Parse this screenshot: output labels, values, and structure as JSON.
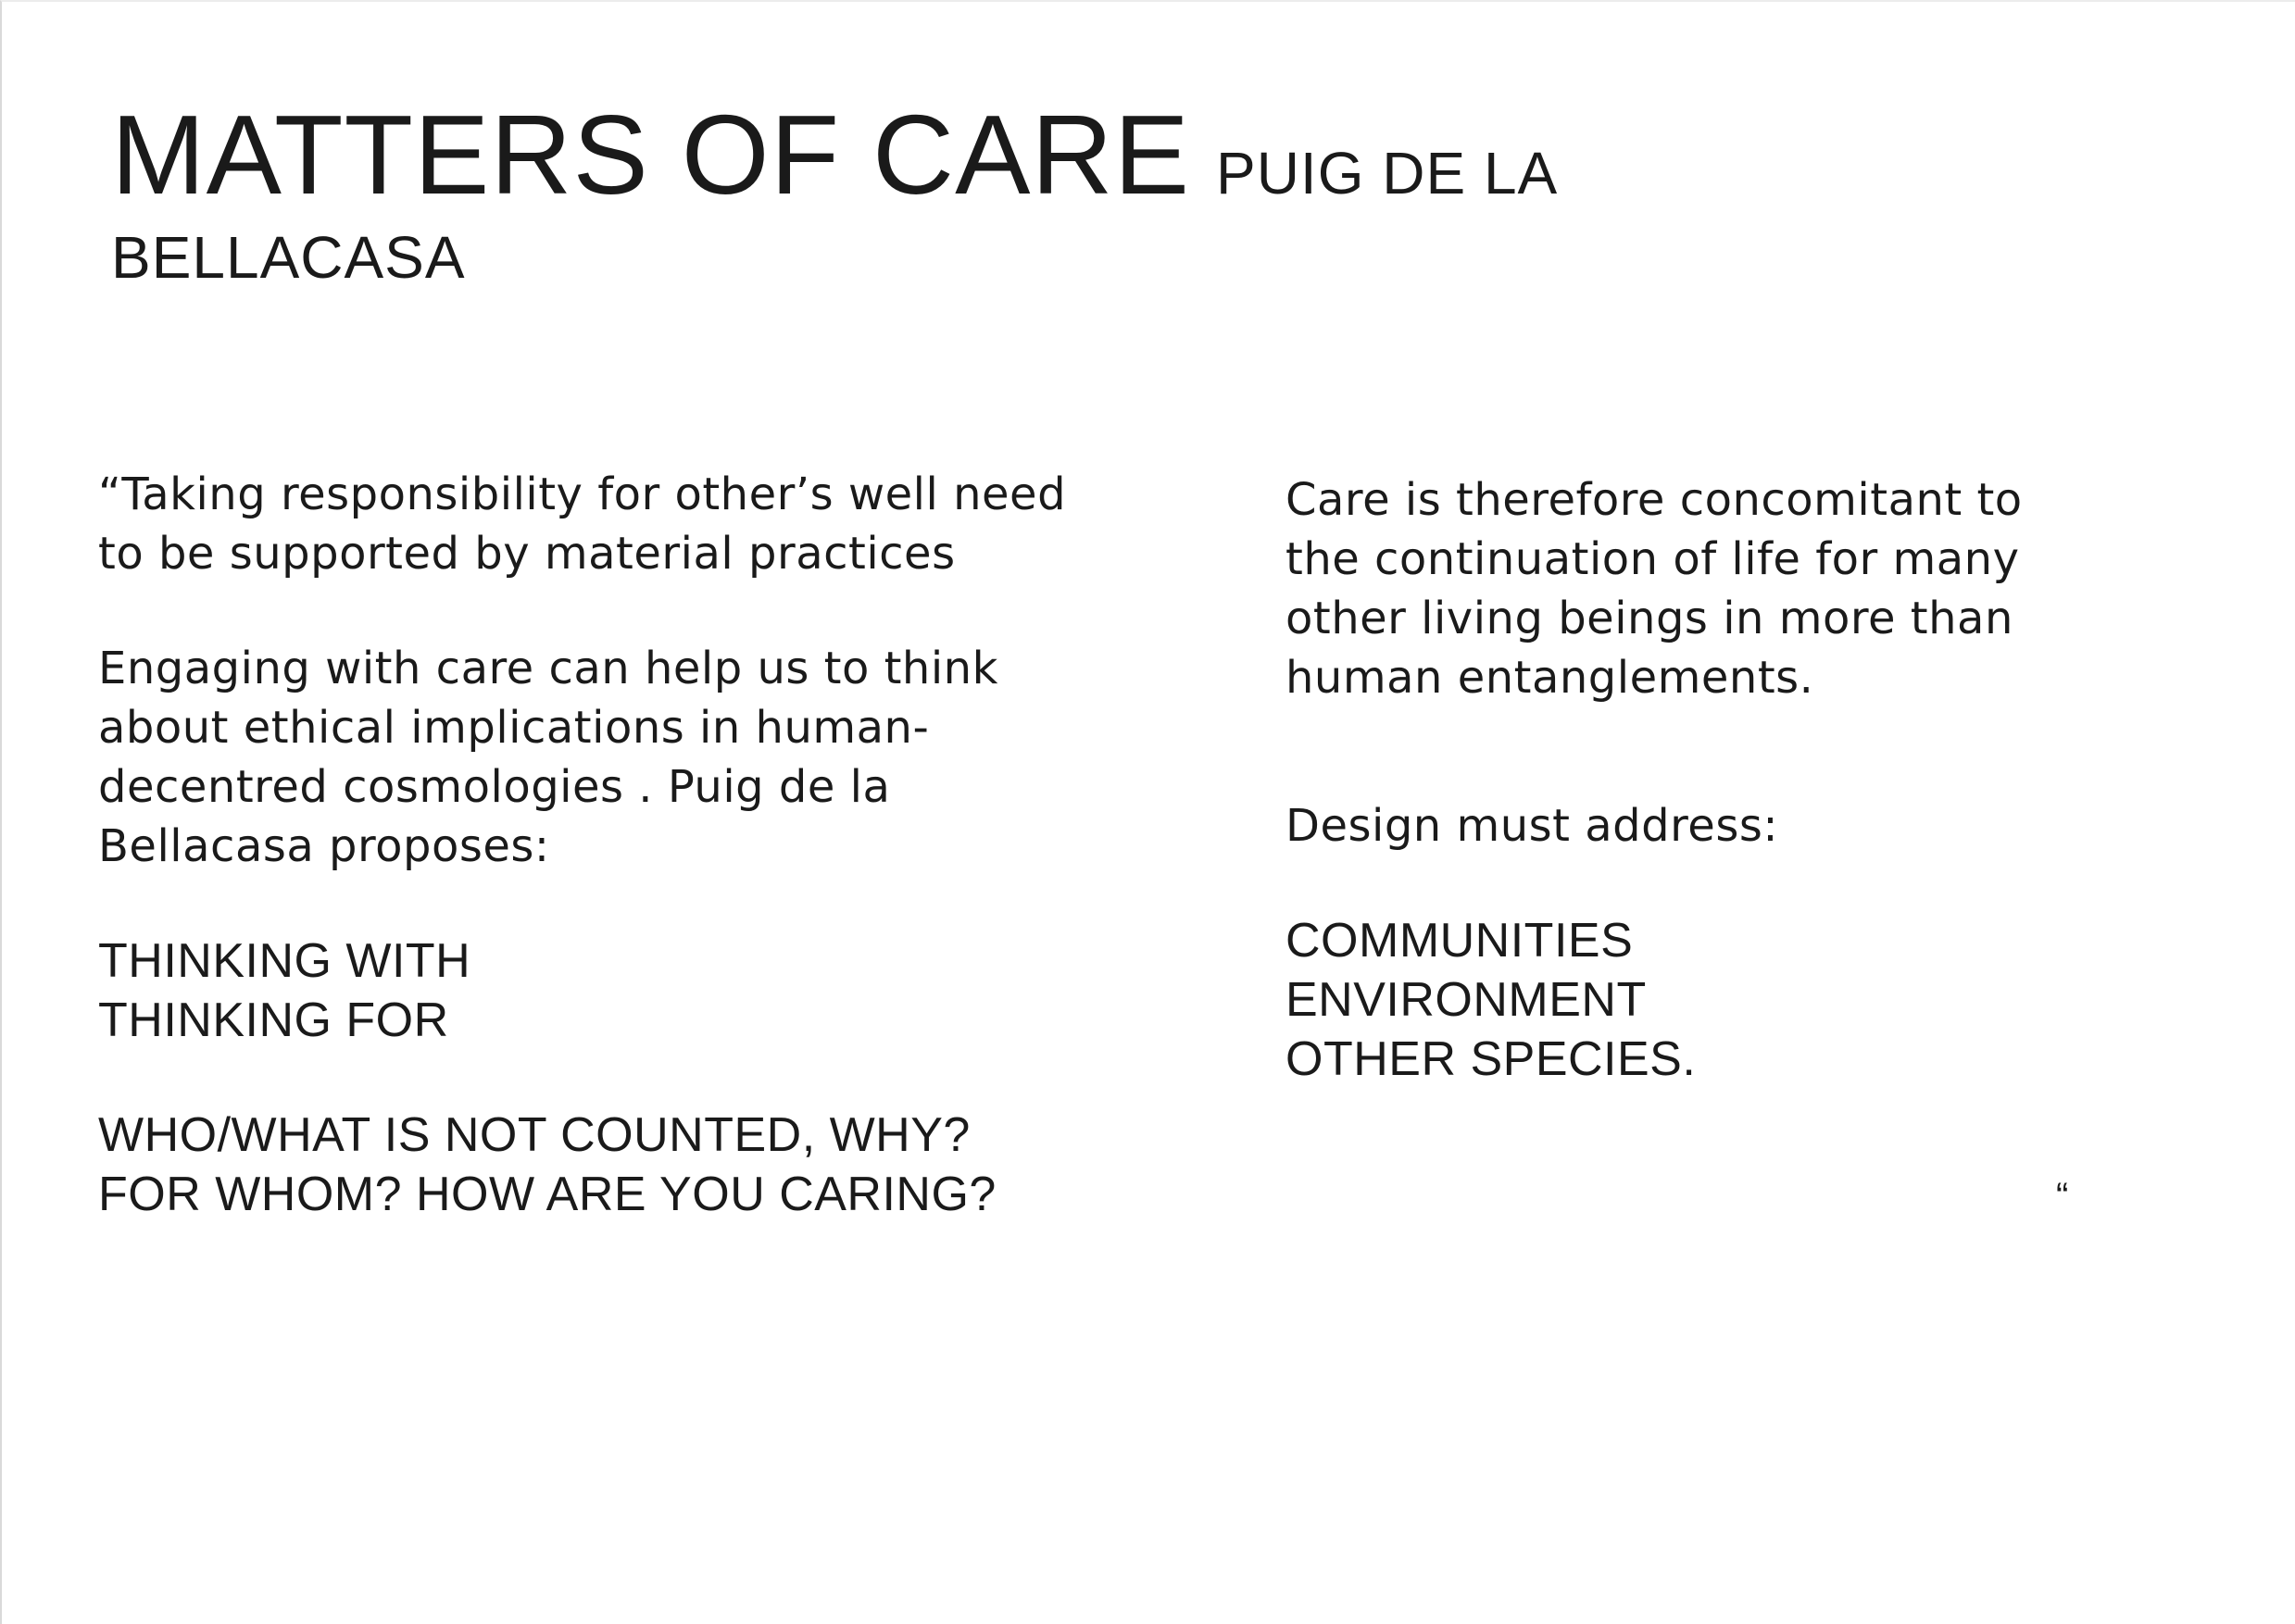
{
  "title": {
    "main": "MATTERS OF CARE",
    "author_line1": "PUIG DE LA",
    "author_line2": "BELLACASA"
  },
  "left_column": {
    "quote_intro": [
      "“Taking responsibility for other’s well  need",
      "to be supported by material practices"
    ],
    "paragraph": [
      "Engaging with care can help us to think",
      "about ethical implications in human-",
      "decentred cosmologies . Puig de la",
      "Bellacasa proposes:"
    ],
    "thinking": [
      "THINKING WITH",
      "THINKING FOR"
    ],
    "questions": [
      "WHO/WHAT IS NOT COUNTED, WHY?",
      "FOR WHOM? HOW ARE YOU CARING?"
    ]
  },
  "right_column": {
    "paragraph": [
      "Care is therefore concomitant to",
      "the continuation of life for many",
      "other living beings in more than",
      "human entanglements."
    ],
    "design_intro": "Design must address:",
    "address_items": [
      "COMMUNITIES",
      "ENVIRONMENT",
      "OTHER SPECIES."
    ],
    "closing_quote": "“"
  }
}
